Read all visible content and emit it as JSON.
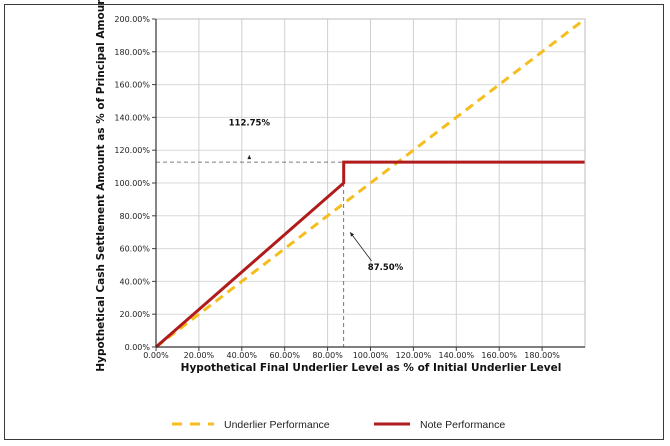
{
  "chart_data": {
    "type": "line",
    "xlabel": "Hypothetical Final Underlier Level as % of Initial Underlier Level",
    "ylabel": "Hypothetical Cash Settlement Amount as % of Principal Amount",
    "xlim": [
      0,
      200
    ],
    "ylim": [
      0,
      200
    ],
    "x_ticks": [
      "0.00%",
      "20.00%",
      "40.00%",
      "60.00%",
      "80.00%",
      "100.00%",
      "120.00%",
      "140.00%",
      "160.00%",
      "180.00%"
    ],
    "y_ticks": [
      "0.00%",
      "20.00%",
      "40.00%",
      "60.00%",
      "80.00%",
      "100.00%",
      "120.00%",
      "140.00%",
      "160.00%",
      "180.00%",
      "200.00%"
    ],
    "grid": true,
    "series": [
      {
        "name": "Underlier Performance",
        "color": "#F5BE1E",
        "style": "dashed",
        "points": [
          [
            0,
            0
          ],
          [
            200,
            200
          ]
        ]
      },
      {
        "name": "Note Performance",
        "color": "#B01C1C",
        "style": "solid",
        "points": [
          [
            0,
            0
          ],
          [
            87.5,
            100
          ],
          [
            87.5,
            112.75
          ],
          [
            200,
            112.75
          ]
        ]
      }
    ],
    "annotations": [
      {
        "text": "112.75%",
        "x": 43.5,
        "y": 135.0,
        "arrow_to": [
          43.5,
          117.0
        ]
      },
      {
        "text": "87.50%",
        "x": 107.0,
        "y": 47.0,
        "arrow_to": [
          90.5,
          70.0
        ]
      }
    ],
    "reference_lines": {
      "y": 112.75,
      "x": 87.5
    },
    "legend_position": "bottom"
  }
}
